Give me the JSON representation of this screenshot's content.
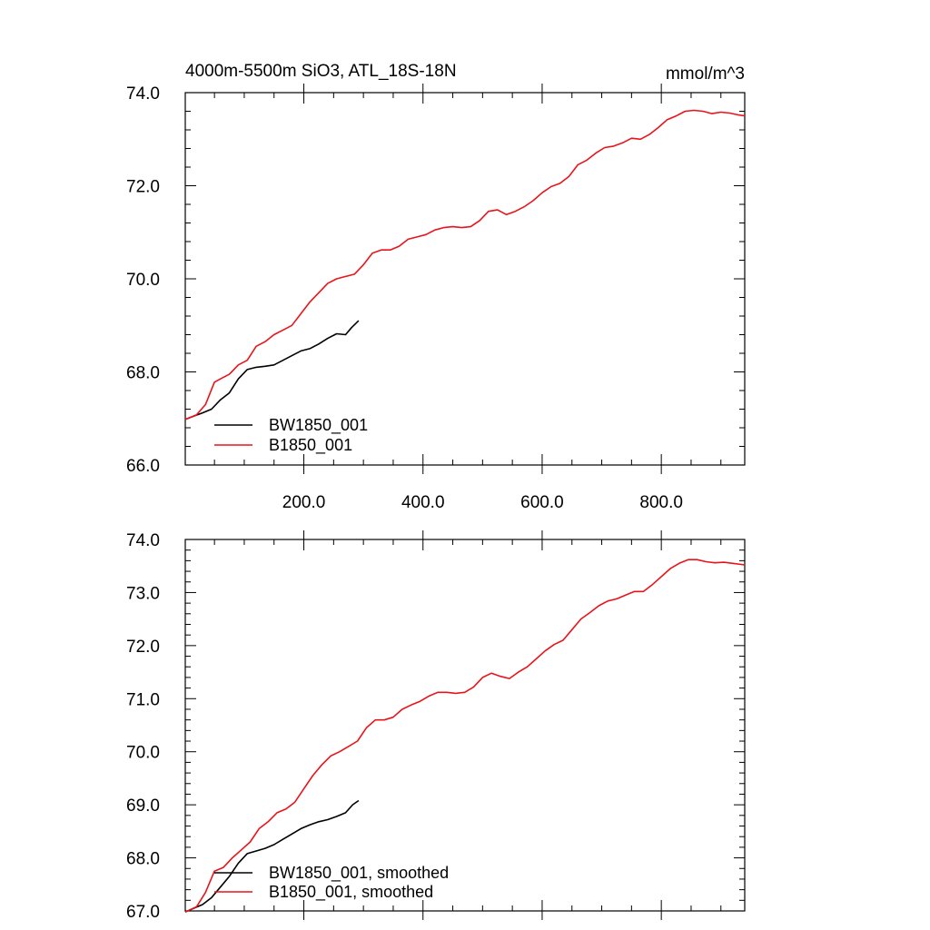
{
  "figure": {
    "title_left": "4000m-5500m SiO3, ATL_18S-18N",
    "title_right": "mmol/m^3"
  },
  "colors": {
    "BW1850_001": "#000000",
    "B1850_001": "#e8141a",
    "axis": "#000000"
  },
  "chart_data": [
    {
      "type": "line",
      "title": "4000m-5500m SiO3, ATL_18S-18N",
      "units": "mmol/m^3",
      "xlabel": "",
      "ylabel": "",
      "xlim": [
        1,
        940
      ],
      "ylim": [
        66.0,
        74.0
      ],
      "x_ticks": [
        200,
        400,
        600,
        800
      ],
      "x_tick_labels": [
        "200.0",
        "400.0",
        "600.0",
        "800.0"
      ],
      "y_ticks": [
        66,
        68,
        70,
        72,
        74
      ],
      "y_tick_labels": [
        "66.0",
        "68.0",
        "70.0",
        "72.0",
        "74.0"
      ],
      "legend": {
        "placement": "bottom-left",
        "entries": [
          "BW1850_001",
          "B1850_001"
        ]
      },
      "series": [
        {
          "name": "BW1850_001",
          "color": "#000000",
          "points": [
            [
              1,
              66.98
            ],
            [
              15,
              67.05
            ],
            [
              30,
              67.12
            ],
            [
              45,
              67.2
            ],
            [
              60,
              67.4
            ],
            [
              75,
              67.55
            ],
            [
              90,
              67.85
            ],
            [
              105,
              68.05
            ],
            [
              120,
              68.1
            ],
            [
              135,
              68.12
            ],
            [
              150,
              68.15
            ],
            [
              165,
              68.25
            ],
            [
              180,
              68.35
            ],
            [
              195,
              68.45
            ],
            [
              210,
              68.5
            ],
            [
              225,
              68.6
            ],
            [
              240,
              68.72
            ],
            [
              255,
              68.82
            ],
            [
              270,
              68.8
            ],
            [
              280,
              68.95
            ],
            [
              292,
              69.1
            ]
          ]
        },
        {
          "name": "B1850_001",
          "color": "#e8141a",
          "points": [
            [
              1,
              66.98
            ],
            [
              20,
              67.08
            ],
            [
              35,
              67.3
            ],
            [
              50,
              67.78
            ],
            [
              60,
              67.85
            ],
            [
              75,
              67.95
            ],
            [
              90,
              68.15
            ],
            [
              105,
              68.25
            ],
            [
              120,
              68.55
            ],
            [
              135,
              68.65
            ],
            [
              150,
              68.8
            ],
            [
              165,
              68.9
            ],
            [
              180,
              69.0
            ],
            [
              195,
              69.25
            ],
            [
              210,
              69.5
            ],
            [
              225,
              69.7
            ],
            [
              240,
              69.9
            ],
            [
              255,
              70.0
            ],
            [
              270,
              70.05
            ],
            [
              285,
              70.1
            ],
            [
              300,
              70.3
            ],
            [
              315,
              70.55
            ],
            [
              330,
              70.62
            ],
            [
              345,
              70.62
            ],
            [
              360,
              70.7
            ],
            [
              375,
              70.85
            ],
            [
              390,
              70.9
            ],
            [
              405,
              70.95
            ],
            [
              420,
              71.05
            ],
            [
              435,
              71.1
            ],
            [
              450,
              71.12
            ],
            [
              465,
              71.1
            ],
            [
              480,
              71.12
            ],
            [
              495,
              71.25
            ],
            [
              510,
              71.45
            ],
            [
              525,
              71.48
            ],
            [
              540,
              71.38
            ],
            [
              555,
              71.45
            ],
            [
              570,
              71.55
            ],
            [
              585,
              71.68
            ],
            [
              600,
              71.85
            ],
            [
              615,
              71.98
            ],
            [
              630,
              72.05
            ],
            [
              645,
              72.2
            ],
            [
              660,
              72.45
            ],
            [
              675,
              72.55
            ],
            [
              690,
              72.7
            ],
            [
              705,
              72.82
            ],
            [
              720,
              72.85
            ],
            [
              735,
              72.92
            ],
            [
              750,
              73.02
            ],
            [
              765,
              73.0
            ],
            [
              780,
              73.1
            ],
            [
              795,
              73.25
            ],
            [
              810,
              73.42
            ],
            [
              825,
              73.5
            ],
            [
              840,
              73.6
            ],
            [
              855,
              73.62
            ],
            [
              870,
              73.6
            ],
            [
              885,
              73.55
            ],
            [
              900,
              73.58
            ],
            [
              915,
              73.56
            ],
            [
              930,
              73.52
            ],
            [
              940,
              73.5
            ]
          ]
        }
      ]
    },
    {
      "type": "line",
      "title": "",
      "xlabel": "",
      "ylabel": "",
      "xlim": [
        1,
        940
      ],
      "ylim": [
        67.0,
        74.0
      ],
      "x_ticks": [
        200,
        400,
        600,
        800
      ],
      "x_tick_labels": [
        "",
        "",
        "",
        ""
      ],
      "y_ticks": [
        67,
        68,
        69,
        70,
        71,
        72,
        73,
        74
      ],
      "y_tick_labels": [
        "67.0",
        "68.0",
        "69.0",
        "70.0",
        "71.0",
        "72.0",
        "73.0",
        "74.0"
      ],
      "legend": {
        "placement": "bottom-left",
        "entries": [
          "BW1850_001, smoothed",
          "B1850_001, smoothed"
        ]
      },
      "series": [
        {
          "name": "BW1850_001, smoothed",
          "color": "#000000",
          "points": [
            [
              1,
              66.98
            ],
            [
              15,
              67.05
            ],
            [
              30,
              67.12
            ],
            [
              45,
              67.25
            ],
            [
              60,
              67.45
            ],
            [
              75,
              67.65
            ],
            [
              90,
              67.9
            ],
            [
              105,
              68.08
            ],
            [
              120,
              68.13
            ],
            [
              135,
              68.18
            ],
            [
              150,
              68.25
            ],
            [
              165,
              68.35
            ],
            [
              180,
              68.45
            ],
            [
              195,
              68.55
            ],
            [
              210,
              68.62
            ],
            [
              225,
              68.68
            ],
            [
              240,
              68.72
            ],
            [
              255,
              68.78
            ],
            [
              270,
              68.85
            ],
            [
              282,
              69.0
            ],
            [
              292,
              69.08
            ]
          ]
        },
        {
          "name": "B1850_001, smoothed",
          "color": "#e8141a",
          "points": [
            [
              1,
              66.98
            ],
            [
              20,
              67.08
            ],
            [
              35,
              67.35
            ],
            [
              50,
              67.75
            ],
            [
              65,
              67.82
            ],
            [
              80,
              68.0
            ],
            [
              95,
              68.15
            ],
            [
              110,
              68.3
            ],
            [
              125,
              68.55
            ],
            [
              140,
              68.68
            ],
            [
              155,
              68.85
            ],
            [
              170,
              68.92
            ],
            [
              185,
              69.05
            ],
            [
              200,
              69.3
            ],
            [
              215,
              69.55
            ],
            [
              230,
              69.75
            ],
            [
              245,
              69.92
            ],
            [
              260,
              70.0
            ],
            [
              275,
              70.1
            ],
            [
              290,
              70.2
            ],
            [
              305,
              70.45
            ],
            [
              320,
              70.6
            ],
            [
              335,
              70.6
            ],
            [
              350,
              70.65
            ],
            [
              365,
              70.8
            ],
            [
              380,
              70.88
            ],
            [
              395,
              70.95
            ],
            [
              410,
              71.05
            ],
            [
              425,
              71.12
            ],
            [
              440,
              71.12
            ],
            [
              455,
              71.1
            ],
            [
              470,
              71.12
            ],
            [
              485,
              71.22
            ],
            [
              500,
              71.4
            ],
            [
              515,
              71.48
            ],
            [
              530,
              71.42
            ],
            [
              545,
              71.38
            ],
            [
              560,
              71.5
            ],
            [
              575,
              71.6
            ],
            [
              590,
              71.75
            ],
            [
              605,
              71.9
            ],
            [
              620,
              72.02
            ],
            [
              635,
              72.1
            ],
            [
              650,
              72.3
            ],
            [
              665,
              72.5
            ],
            [
              680,
              72.62
            ],
            [
              695,
              72.75
            ],
            [
              710,
              72.84
            ],
            [
              725,
              72.88
            ],
            [
              740,
              72.95
            ],
            [
              755,
              73.02
            ],
            [
              770,
              73.02
            ],
            [
              785,
              73.15
            ],
            [
              800,
              73.3
            ],
            [
              815,
              73.45
            ],
            [
              830,
              73.55
            ],
            [
              845,
              73.62
            ],
            [
              860,
              73.62
            ],
            [
              875,
              73.58
            ],
            [
              890,
              73.56
            ],
            [
              905,
              73.57
            ],
            [
              920,
              73.55
            ],
            [
              940,
              73.52
            ]
          ]
        }
      ]
    }
  ]
}
